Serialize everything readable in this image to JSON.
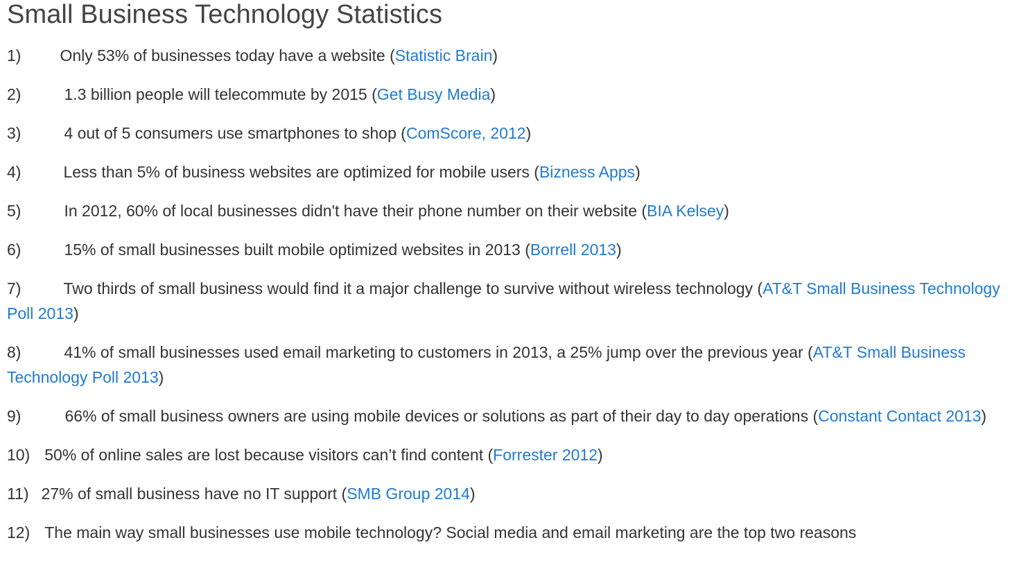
{
  "title": "Small Business Technology Statistics",
  "items": [
    {
      "num": "1)",
      "gap": 56,
      "text": "Only 53% of businesses today have a website",
      "source": "Statistic Brain"
    },
    {
      "num": "2)",
      "gap": 62,
      "text": "1.3 billion people will telecommute by 2015",
      "source": "Get Busy Media"
    },
    {
      "num": "3)",
      "gap": 62,
      "text": "4 out of 5 consumers use smartphones to shop",
      "source": "ComScore, 2012"
    },
    {
      "num": "4)",
      "gap": 61,
      "text": "Less than 5% of business websites are optimized for mobile users",
      "source": "Bizness Apps"
    },
    {
      "num": "5)",
      "gap": 62,
      "text": "In 2012, 60% of local businesses didn't have their phone number on their website",
      "source": "BIA Kelsey"
    },
    {
      "num": "6)",
      "gap": 62,
      "text": "15% of small businesses built mobile optimized websites in 2013",
      "source": "Borrell 2013"
    },
    {
      "num": "7)",
      "gap": 61,
      "text": "Two thirds of small business would find it a major challenge to survive without wireless technology",
      "source": "AT&T Small Business Technology Poll 2013"
    },
    {
      "num": "8)",
      "gap": 62,
      "text": "41% of small businesses used email marketing to customers in 2013, a 25% jump over the previous year",
      "source": "AT&T Small Business Technology Poll 2013"
    },
    {
      "num": "9)",
      "gap": 63,
      "text": "66% of small business owners are using mobile devices or solutions as part of their day to day operations",
      "source": "Constant Contact 2013"
    },
    {
      "num": "10)",
      "gap": 21,
      "text": "50% of online sales are lost because visitors can’t find content",
      "source": "Forrester 2012"
    },
    {
      "num": "11)",
      "gap": 18,
      "text": "27% of small business have no IT support",
      "source": "SMB Group 2014"
    },
    {
      "num": "12)",
      "gap": 21,
      "text": "The main way small businesses use mobile technology? Social media and email marketing are the top two reasons",
      "source": ""
    }
  ]
}
